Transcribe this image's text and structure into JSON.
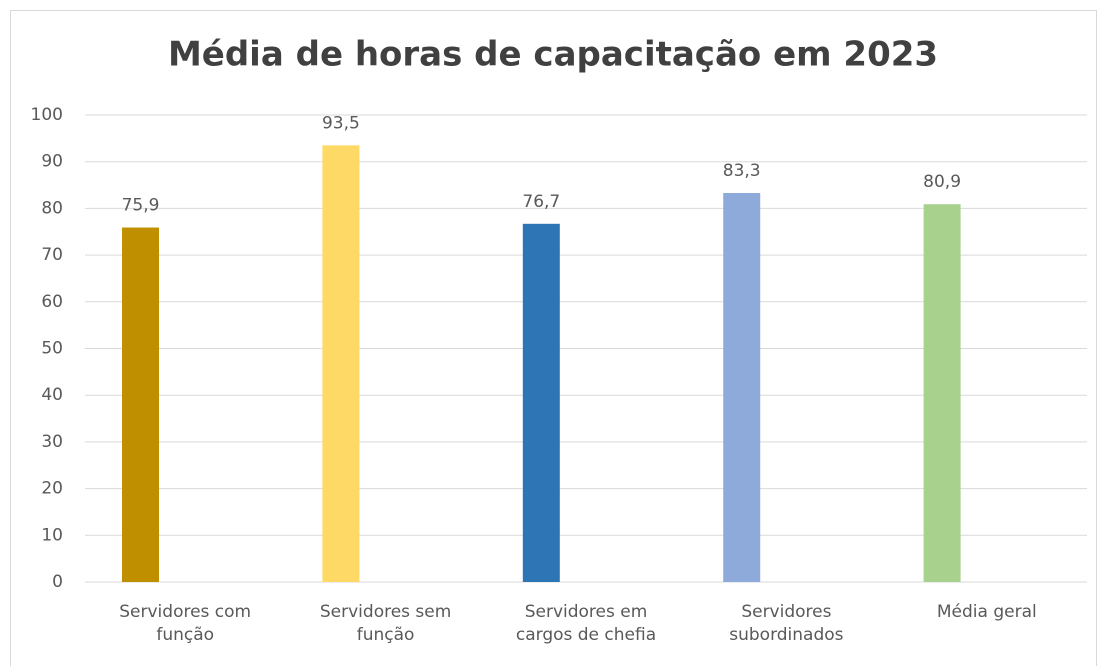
{
  "chart_data": {
    "type": "bar",
    "title": "Média de horas de capacitação em 2023",
    "categories": [
      "Servidores com função",
      "Servidores sem função",
      "Servidores em cargos de chefia",
      "Servidores subordinados",
      "Média geral"
    ],
    "values": [
      75.9,
      93.5,
      76.7,
      83.3,
      80.9
    ],
    "value_labels": [
      "75,9",
      "93,5",
      "76,7",
      "83,3",
      "80,9"
    ],
    "colors": [
      "#bf8f00",
      "#ffd966",
      "#2e75b6",
      "#8eaadb",
      "#a9d18e"
    ],
    "ylim": [
      0,
      100
    ],
    "yticks": [
      0,
      10,
      20,
      30,
      40,
      50,
      60,
      70,
      80,
      90,
      100
    ],
    "grid": true
  }
}
